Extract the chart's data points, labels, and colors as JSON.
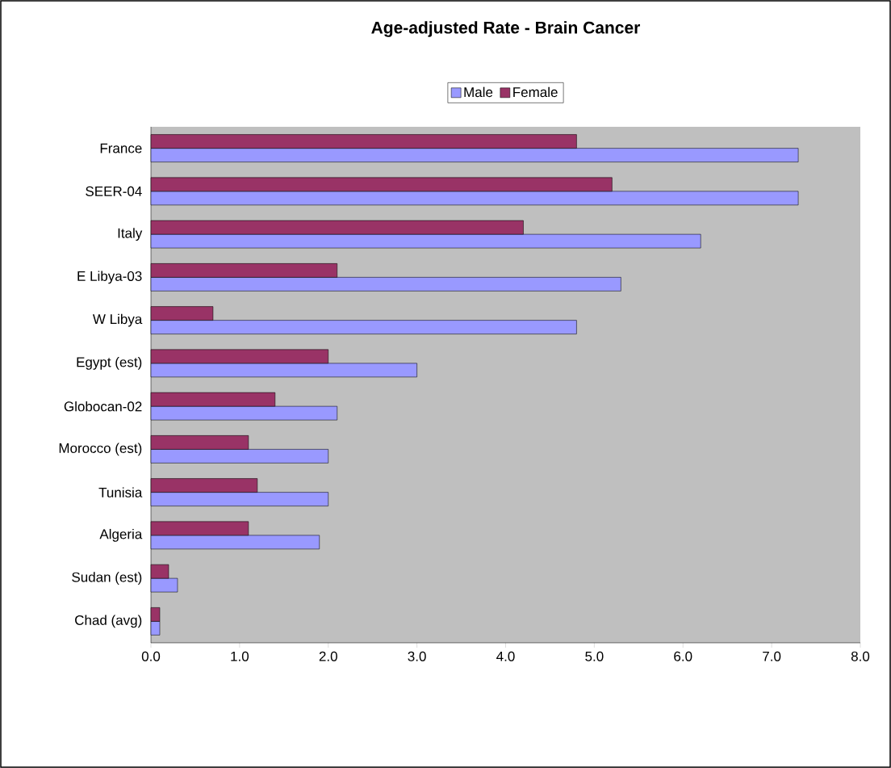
{
  "chart_data": {
    "type": "bar",
    "orientation": "horizontal",
    "title": "Age-adjusted Rate - Brain Cancer",
    "categories": [
      "France",
      "SEER-04",
      "Italy",
      "E Libya-03",
      "W Libya",
      "Egypt (est)",
      "Globocan-02",
      "Morocco (est)",
      "Tunisia",
      "Algeria",
      "Sudan (est)",
      "Chad (avg)"
    ],
    "series": [
      {
        "name": "Male",
        "color": "#9999ff",
        "values": [
          7.3,
          7.3,
          6.2,
          5.3,
          4.8,
          3.0,
          2.1,
          2.0,
          2.0,
          1.9,
          0.3,
          0.1
        ]
      },
      {
        "name": "Female",
        "color": "#993366",
        "values": [
          4.8,
          5.2,
          4.2,
          2.1,
          0.7,
          2.0,
          1.4,
          1.1,
          1.2,
          1.1,
          0.2,
          0.1
        ]
      }
    ],
    "xlim": [
      0,
      8
    ],
    "xticks": [
      {
        "value": 0,
        "label": "0.0"
      },
      {
        "value": 1,
        "label": "1.0"
      },
      {
        "value": 2,
        "label": "2.0"
      },
      {
        "value": 3,
        "label": "3.0"
      },
      {
        "value": 4,
        "label": "4.0"
      },
      {
        "value": 5,
        "label": "5.0"
      },
      {
        "value": 6,
        "label": "6.0"
      },
      {
        "value": 7,
        "label": "7.0"
      },
      {
        "value": 8,
        "label": "8.0"
      }
    ],
    "grid": false,
    "legend": "top"
  }
}
